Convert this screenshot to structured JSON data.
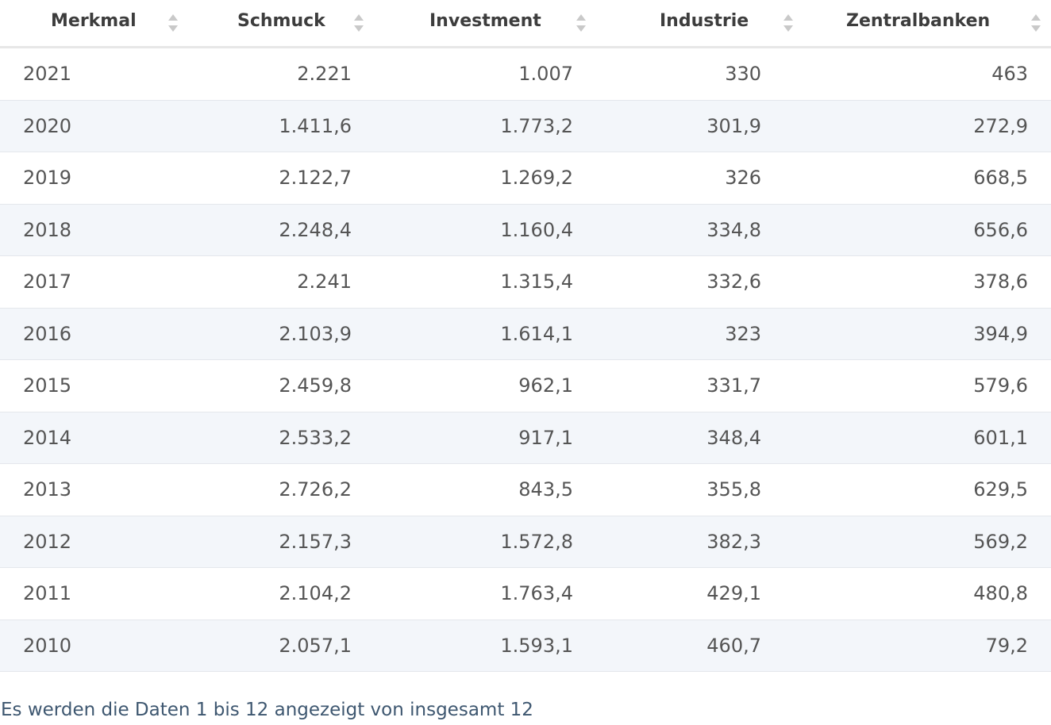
{
  "table": {
    "columns": [
      "Merkmal",
      "Schmuck",
      "Investment",
      "Industrie",
      "Zentralbanken"
    ],
    "rows": [
      [
        "2021",
        "2.221",
        "1.007",
        "330",
        "463"
      ],
      [
        "2020",
        "1.411,6",
        "1.773,2",
        "301,9",
        "272,9"
      ],
      [
        "2019",
        "2.122,7",
        "1.269,2",
        "326",
        "668,5"
      ],
      [
        "2018",
        "2.248,4",
        "1.160,4",
        "334,8",
        "656,6"
      ],
      [
        "2017",
        "2.241",
        "1.315,4",
        "332,6",
        "378,6"
      ],
      [
        "2016",
        "2.103,9",
        "1.614,1",
        "323",
        "394,9"
      ],
      [
        "2015",
        "2.459,8",
        "962,1",
        "331,7",
        "579,6"
      ],
      [
        "2014",
        "2.533,2",
        "917,1",
        "348,4",
        "601,1"
      ],
      [
        "2013",
        "2.726,2",
        "843,5",
        "355,8",
        "629,5"
      ],
      [
        "2012",
        "2.157,3",
        "1.572,8",
        "382,3",
        "569,2"
      ],
      [
        "2011",
        "2.104,2",
        "1.763,4",
        "429,1",
        "480,8"
      ],
      [
        "2010",
        "2.057,1",
        "1.593,1",
        "460,7",
        "79,2"
      ]
    ]
  },
  "footer": {
    "info": "Es werden die Daten 1 bis 12 angezeigt von insgesamt 12"
  },
  "icons": {
    "sort": "sort-updown-icon"
  },
  "colors": {
    "header_text": "#3d3d3d",
    "cell_text": "#555555",
    "row_alt_bg": "#f3f6fa",
    "footer_text": "#3e5770"
  }
}
